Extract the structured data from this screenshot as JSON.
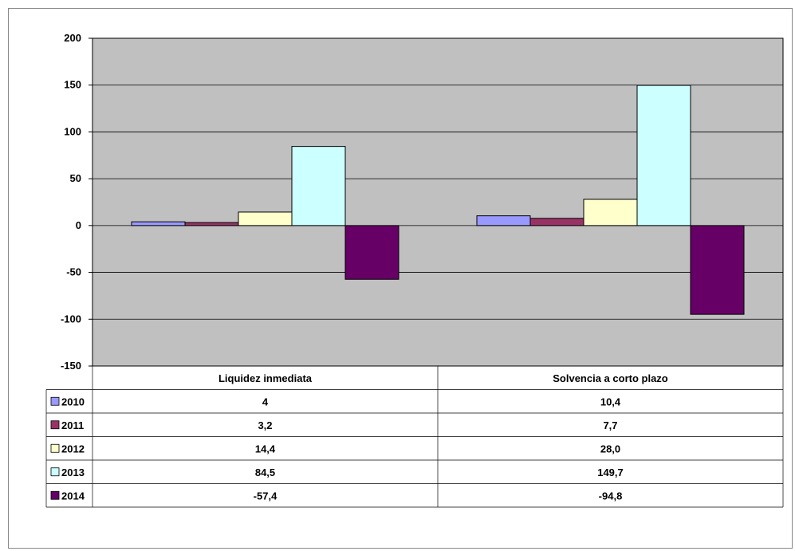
{
  "chart_data": {
    "type": "bar",
    "title": "",
    "xlabel": "",
    "ylabel": "",
    "ylim": [
      -150,
      200
    ],
    "yticks": [
      "200",
      "150",
      "100",
      "50",
      "0",
      "-50",
      "-100",
      "-150"
    ],
    "ytick_values": [
      200,
      150,
      100,
      50,
      0,
      -50,
      -100,
      -150
    ],
    "grid": true,
    "legend": "data table below chart",
    "plot_background": "#c0c0c0",
    "categories": [
      "Liquidez inmediata",
      "Solvencia a corto plazo"
    ],
    "series": [
      {
        "name": "2010",
        "color": "#9999ff",
        "values": [
          4,
          10.4
        ],
        "labels": [
          "4",
          "10,4"
        ]
      },
      {
        "name": "2011",
        "color": "#993366",
        "values": [
          3.2,
          7.7
        ],
        "labels": [
          "3,2",
          "7,7"
        ]
      },
      {
        "name": "2012",
        "color": "#ffffcc",
        "values": [
          14.4,
          28.0
        ],
        "labels": [
          "14,4",
          "28,0"
        ]
      },
      {
        "name": "2013",
        "color": "#ccffff",
        "values": [
          84.5,
          149.7
        ],
        "labels": [
          "84,5",
          "149,7"
        ]
      },
      {
        "name": "2014",
        "color": "#660066",
        "values": [
          -57.4,
          -94.8
        ],
        "labels": [
          "-57,4",
          "-94,8"
        ]
      }
    ]
  }
}
